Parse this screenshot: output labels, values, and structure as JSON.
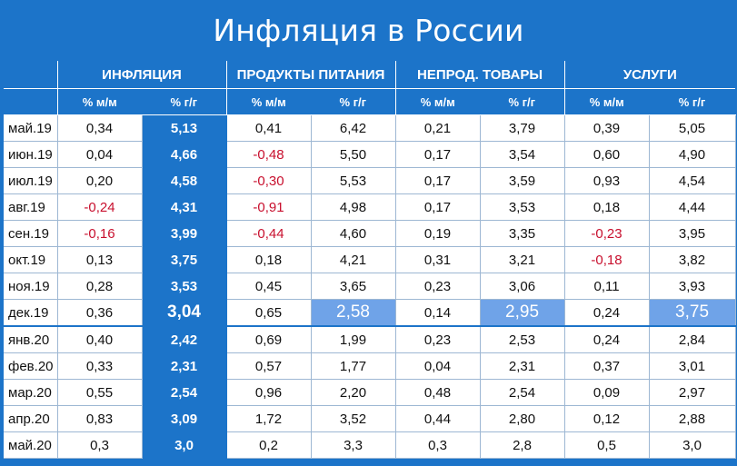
{
  "title": "Инфляция в России",
  "groups": [
    "ИНФЛЯЦИЯ",
    "ПРОДУКТЫ ПИТАНИЯ",
    "НЕПРОД. ТОВАРЫ",
    "УСЛУГИ"
  ],
  "subheaders": [
    "% м/м",
    "% г/г",
    "% м/м",
    "% г/г",
    "% м/м",
    "% г/г",
    "% м/м",
    "% г/г"
  ],
  "rows": [
    {
      "month": "май.19",
      "cells": [
        "0,34",
        "5,13",
        "0,41",
        "6,42",
        "0,21",
        "3,79",
        "0,39",
        "5,05"
      ]
    },
    {
      "month": "июн.19",
      "cells": [
        "0,04",
        "4,66",
        "-0,48",
        "5,50",
        "0,17",
        "3,54",
        "0,60",
        "4,90"
      ]
    },
    {
      "month": "июл.19",
      "cells": [
        "0,20",
        "4,58",
        "-0,30",
        "5,53",
        "0,17",
        "3,59",
        "0,93",
        "4,54"
      ]
    },
    {
      "month": "авг.19",
      "cells": [
        "-0,24",
        "4,31",
        "-0,91",
        "4,98",
        "0,17",
        "3,53",
        "0,18",
        "4,44"
      ]
    },
    {
      "month": "сен.19",
      "cells": [
        "-0,16",
        "3,99",
        "-0,44",
        "4,60",
        "0,19",
        "3,35",
        "-0,23",
        "3,95"
      ]
    },
    {
      "month": "окт.19",
      "cells": [
        "0,13",
        "3,75",
        "0,18",
        "4,21",
        "0,31",
        "3,21",
        "-0,18",
        "3,82"
      ]
    },
    {
      "month": "ноя.19",
      "cells": [
        "0,28",
        "3,53",
        "0,45",
        "3,65",
        "0,23",
        "3,06",
        "0,11",
        "3,93"
      ]
    },
    {
      "month": "дек.19",
      "cells": [
        "0,36",
        "3,04",
        "0,65",
        "2,58",
        "0,14",
        "2,95",
        "0,24",
        "3,75"
      ]
    },
    {
      "month": "янв.20",
      "cells": [
        "0,40",
        "2,42",
        "0,69",
        "1,99",
        "0,23",
        "2,53",
        "0,24",
        "2,84"
      ]
    },
    {
      "month": "фев.20",
      "cells": [
        "0,33",
        "2,31",
        "0,57",
        "1,77",
        "0,04",
        "2,31",
        "0,37",
        "3,01"
      ]
    },
    {
      "month": "мар.20",
      "cells": [
        "0,55",
        "2,54",
        "0,96",
        "2,20",
        "0,48",
        "2,54",
        "0,09",
        "2,97"
      ]
    },
    {
      "month": "апр.20",
      "cells": [
        "0,83",
        "3,09",
        "1,72",
        "3,52",
        "0,44",
        "2,80",
        "0,12",
        "2,88"
      ]
    },
    {
      "month": "май.20",
      "cells": [
        "0,3",
        "3,0",
        "0,2",
        "3,3",
        "0,3",
        "2,8",
        "0,5",
        "3,0"
      ]
    }
  ],
  "colors": {
    "background": "#1c74c9",
    "highlight_column": "#1c74c9",
    "year_end_highlight": "#6fa3e8",
    "negative": "#c8102e"
  }
}
